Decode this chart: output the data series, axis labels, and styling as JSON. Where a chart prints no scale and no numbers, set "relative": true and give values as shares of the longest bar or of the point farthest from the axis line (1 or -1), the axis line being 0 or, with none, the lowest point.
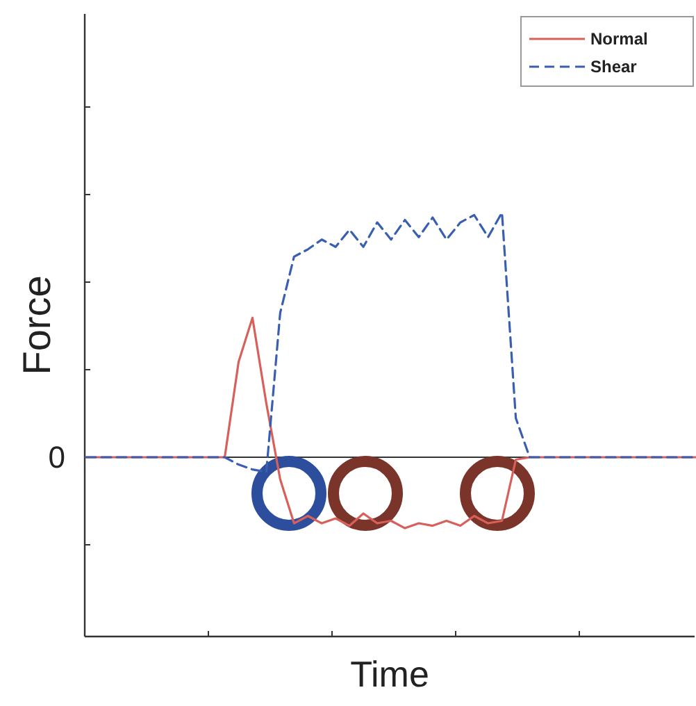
{
  "chart_data": {
    "type": "line",
    "relative": true,
    "xlabel": "Time",
    "ylabel": "Force",
    "ref_lines": [
      {
        "axis": "y",
        "value": 0,
        "label": "0",
        "color": "#333333"
      }
    ],
    "legend": "top right",
    "grid": false,
    "marker": "none",
    "categories": [
      null,
      null,
      null,
      null,
      null,
      null,
      null,
      null,
      null,
      null,
      null,
      null,
      null,
      null,
      null,
      null,
      null,
      null,
      null,
      null,
      null,
      null,
      null,
      null,
      null,
      null,
      null,
      null,
      null,
      null,
      null,
      null,
      null,
      null,
      null,
      null,
      null,
      null,
      null,
      null,
      null,
      null,
      null,
      null,
      null
    ],
    "series": [
      {
        "name": "Normal",
        "color": "#d8605a",
        "line_style": "solid",
        "values": [
          0,
          0,
          0,
          0,
          0,
          0,
          0,
          0,
          0,
          0,
          0,
          0.39,
          0.57,
          0.22,
          -0.09,
          -0.27,
          -0.24,
          -0.27,
          -0.25,
          -0.28,
          -0.23,
          -0.27,
          -0.26,
          -0.29,
          -0.27,
          -0.28,
          -0.26,
          -0.28,
          -0.24,
          -0.27,
          -0.26,
          -0.01,
          0,
          0,
          0,
          0,
          0,
          0,
          0,
          0,
          0,
          0,
          0,
          0,
          0
        ]
      },
      {
        "name": "Shear",
        "color": "#3a5fb0",
        "line_style": "dashed",
        "values": [
          0,
          0,
          0,
          0,
          0,
          0,
          0,
          0,
          0,
          0,
          0,
          -0.03,
          -0.05,
          -0.06,
          0.59,
          0.82,
          0.85,
          0.89,
          0.86,
          0.93,
          0.86,
          0.96,
          0.89,
          0.97,
          0.9,
          0.98,
          0.89,
          0.96,
          0.99,
          0.9,
          1,
          0.16,
          0,
          0,
          0,
          0,
          0,
          0,
          0,
          0,
          0,
          0,
          0,
          0,
          0
        ]
      }
    ]
  }
}
